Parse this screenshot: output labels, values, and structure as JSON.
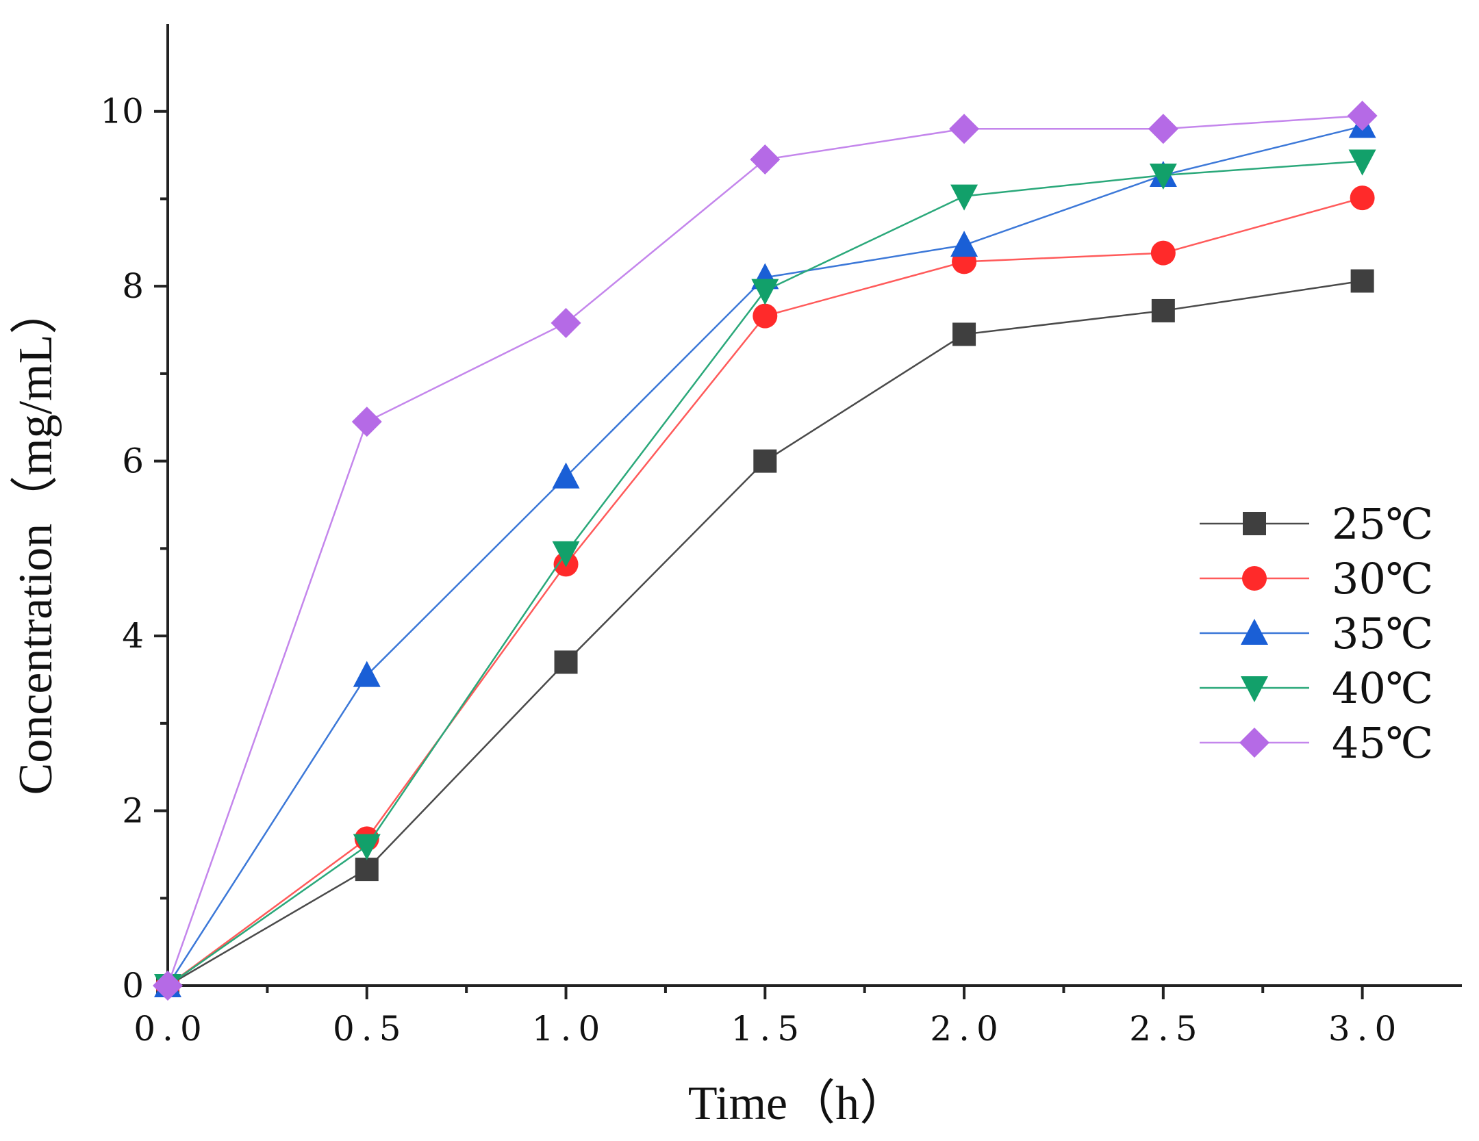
{
  "chart_data": {
    "type": "line",
    "title": "",
    "xlabel": "Time（h）",
    "ylabel": "Concentration（mg/mL）",
    "xlim": [
      0,
      3.25
    ],
    "ylim": [
      0,
      11
    ],
    "x": [
      0,
      0.5,
      1.0,
      1.5,
      2.0,
      2.5,
      3.0
    ],
    "x_ticks": [
      0,
      0.5,
      1.0,
      1.5,
      2.0,
      2.5,
      3.0
    ],
    "x_tick_labels": [
      "0.0",
      "0.5",
      "1.0",
      "1.5",
      "2.0",
      "2.5",
      "3.0"
    ],
    "y_ticks": [
      0,
      2,
      4,
      6,
      8,
      10
    ],
    "y_tick_labels": [
      "0",
      "2",
      "4",
      "6",
      "8",
      "10"
    ],
    "grid": false,
    "legend_position": "center-right",
    "series": [
      {
        "name": "25℃",
        "marker": "square",
        "color": "#3f3f3f",
        "line_color": "#4a4a4a",
        "values": [
          0,
          1.33,
          3.7,
          6.0,
          7.45,
          7.72,
          8.06
        ]
      },
      {
        "name": "30℃",
        "marker": "circle",
        "color": "#ff2a2a",
        "line_color": "#ff5a5a",
        "values": [
          0,
          1.68,
          4.82,
          7.66,
          8.28,
          8.38,
          9.01
        ]
      },
      {
        "name": "35℃",
        "marker": "triangle-up",
        "color": "#1a5fd6",
        "line_color": "#3c78d8",
        "values": [
          0,
          3.55,
          5.82,
          8.1,
          8.47,
          9.27,
          9.83
        ]
      },
      {
        "name": "40℃",
        "marker": "triangle-down",
        "color": "#12a06a",
        "line_color": "#2aa87a",
        "values": [
          0,
          1.6,
          4.95,
          7.95,
          9.03,
          9.27,
          9.43
        ]
      },
      {
        "name": "45℃",
        "marker": "diamond",
        "color": "#b56ae6",
        "line_color": "#c486ec",
        "values": [
          0,
          6.45,
          7.58,
          9.45,
          9.8,
          9.8,
          9.95
        ]
      }
    ]
  }
}
